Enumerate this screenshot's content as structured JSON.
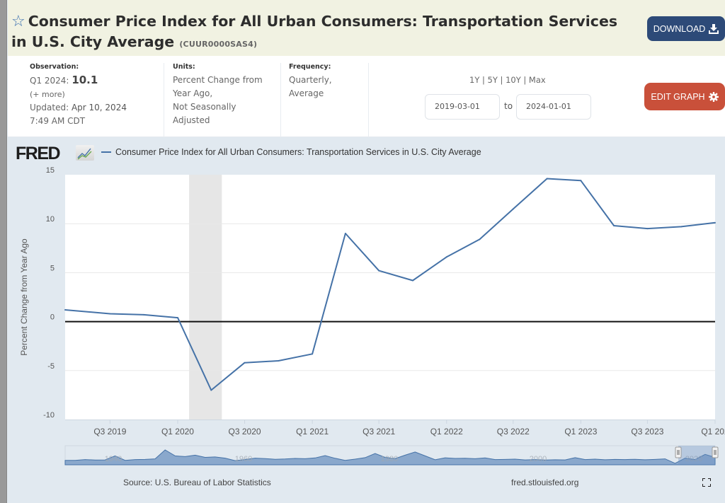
{
  "header": {
    "title": "Consumer Price Index for All Urban Consumers: Transportation Services in U.S. City Average",
    "series_id": "(CUUR0000SAS4)",
    "star_icon": "star-outline-icon",
    "download_label": "DOWNLOAD",
    "download_icon": "download-icon"
  },
  "meta": {
    "observation_label": "Observation:",
    "observation_period": "Q1 2024:",
    "observation_value": "10.1",
    "more_link": "(+ more)",
    "updated_label": "Updated:",
    "updated_date": "Apr 10, 2024",
    "updated_time": "7:49 AM CDT",
    "units_label": "Units:",
    "units_lines": [
      "Percent Change from",
      "Year Ago,",
      "Not Seasonally",
      "Adjusted"
    ],
    "frequency_label": "Frequency:",
    "frequency_lines": [
      "Quarterly,",
      "Average"
    ]
  },
  "range": {
    "links": [
      "1Y",
      "5Y",
      "10Y",
      "Max"
    ],
    "start_date": "2019-03-01",
    "to_label": "to",
    "end_date": "2024-01-01",
    "edit_label": "EDIT GRAPH",
    "edit_icon": "gear-icon"
  },
  "footer": {
    "source": "Source: U.S. Bureau of Labor Statistics",
    "url": "fred.stlouisfed.org",
    "fullscreen_icon": "fullscreen-icon"
  },
  "colors": {
    "line": "#4572a7",
    "download_bg": "#2d4a78",
    "edit_bg": "#c9503a",
    "recession": "#e6e6e6"
  },
  "chart_data": {
    "type": "line",
    "logo": "FRED",
    "title": "",
    "legend": [
      "Consumer Price Index for All Urban Consumers: Transportation Services in U.S. City Average"
    ],
    "legend_position": "top-left",
    "xlabel": "",
    "ylabel": "Percent Change from Year Ago",
    "ylim": [
      -10,
      15
    ],
    "yticks": [
      15,
      10,
      5,
      0,
      -5,
      -10
    ],
    "xlim": [
      "2019-03-01",
      "2024-01-01"
    ],
    "xticks": [
      {
        "date": "2019-07-01",
        "label": "Q3 2019"
      },
      {
        "date": "2020-01-01",
        "label": "Q1 2020"
      },
      {
        "date": "2020-07-01",
        "label": "Q3 2020"
      },
      {
        "date": "2021-01-01",
        "label": "Q1 2021"
      },
      {
        "date": "2021-07-01",
        "label": "Q3 2021"
      },
      {
        "date": "2022-01-01",
        "label": "Q1 2022"
      },
      {
        "date": "2022-07-01",
        "label": "Q3 2022"
      },
      {
        "date": "2023-01-01",
        "label": "Q1 2023"
      },
      {
        "date": "2023-07-01",
        "label": "Q3 2023"
      },
      {
        "date": "2024-01-01",
        "label": "Q1 202"
      }
    ],
    "grid": true,
    "zero_line": true,
    "recessions": [
      {
        "start": "2020-02-01",
        "end": "2020-04-30"
      }
    ],
    "series": [
      {
        "name": "Consumer Price Index for All Urban Consumers: Transportation Services in U.S. City Average",
        "x": [
          "2019-03-01",
          "2019-07-01",
          "2019-10-01",
          "2020-01-01",
          "2020-04-01",
          "2020-07-01",
          "2020-10-01",
          "2021-01-01",
          "2021-04-01",
          "2021-07-01",
          "2021-10-01",
          "2022-01-01",
          "2022-04-01",
          "2022-07-01",
          "2022-10-01",
          "2023-01-01",
          "2023-04-01",
          "2023-07-01",
          "2023-10-01",
          "2024-01-01"
        ],
        "values": [
          1.2,
          0.8,
          0.7,
          0.4,
          -7.0,
          -4.2,
          -4.0,
          -3.3,
          9.0,
          5.2,
          4.2,
          6.6,
          8.4,
          11.5,
          14.6,
          14.4,
          9.8,
          9.5,
          9.7,
          10.1
        ]
      }
    ],
    "navigator": {
      "labels": [
        "1940",
        "1960",
        "1980",
        "2000",
        "2020"
      ]
    }
  }
}
